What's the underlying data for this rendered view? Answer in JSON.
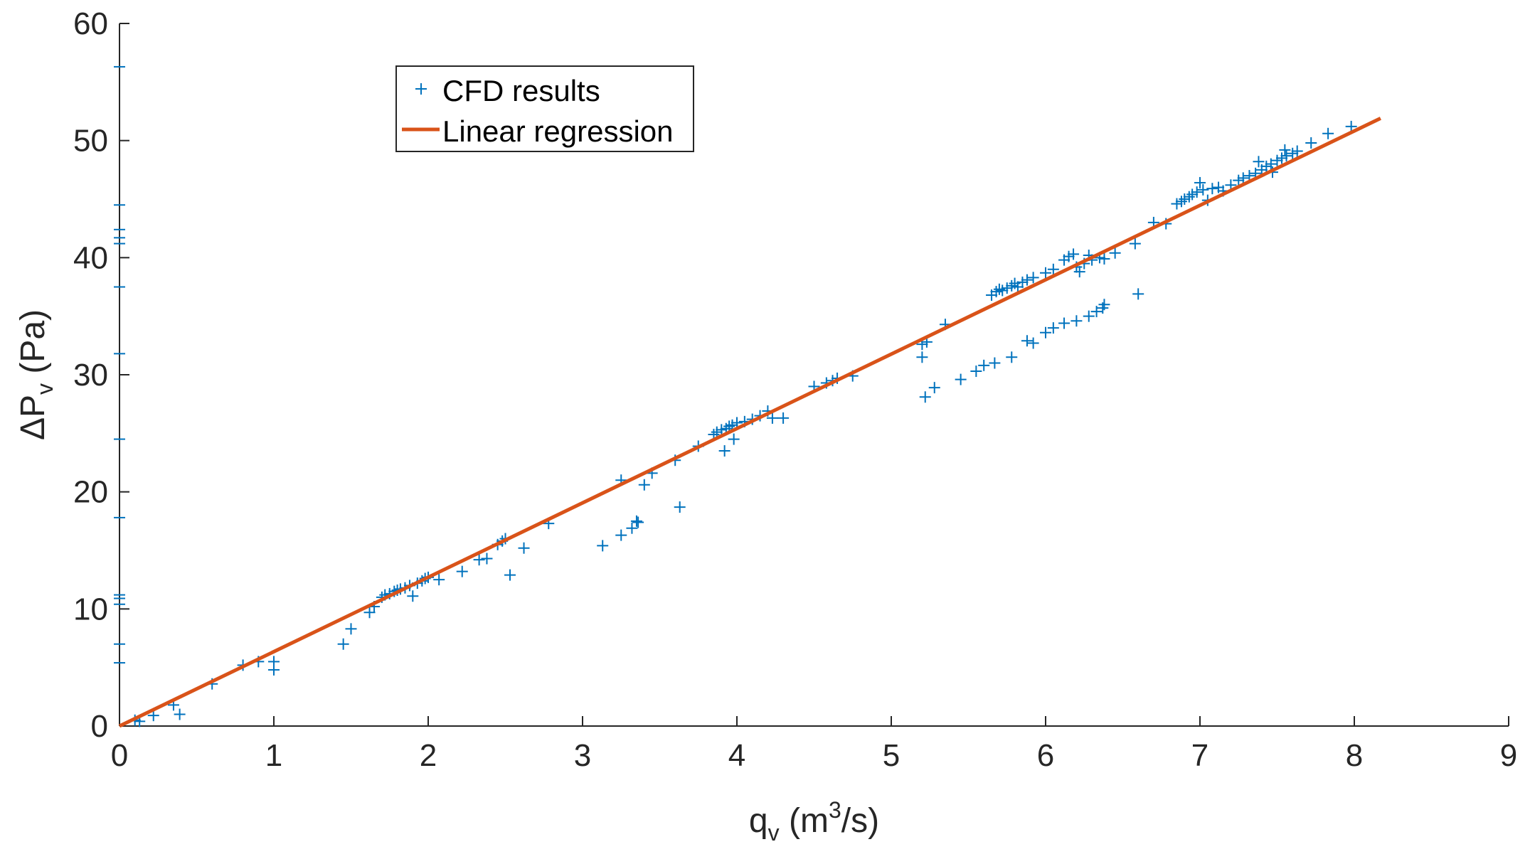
{
  "chart_data": {
    "type": "scatter",
    "title": "",
    "xlabel": {
      "base": "q",
      "sub": "v",
      "unit_open": " (m",
      "sup": "3",
      "unit_close": "/s)"
    },
    "ylabel": {
      "base": "ΔP",
      "sub": "v",
      "unit": " (Pa)"
    },
    "xlim": [
      0,
      9
    ],
    "ylim": [
      0,
      60
    ],
    "xticks": [
      "0",
      "1",
      "2",
      "3",
      "4",
      "5",
      "6",
      "7",
      "8",
      "9"
    ],
    "yticks": [
      "0",
      "10",
      "20",
      "30",
      "40",
      "50",
      "60"
    ],
    "legend_position": "top-left (inside axes)",
    "grid": false,
    "colors": {
      "scatter": "#0072BD",
      "regression": "#D95319",
      "axis": "#262626"
    },
    "regression": {
      "name": "Linear regression",
      "x": [
        0,
        8.17
      ],
      "y": [
        0,
        51.9
      ]
    },
    "series": [
      {
        "name": "CFD results",
        "marker": "+",
        "points": [
          [
            0.1,
            0.5
          ],
          [
            0.13,
            0.4
          ],
          [
            0.22,
            0.9
          ],
          [
            0.35,
            1.8
          ],
          [
            0.39,
            1.0
          ],
          [
            0.6,
            3.6
          ],
          [
            0.8,
            5.2
          ],
          [
            0.9,
            5.5
          ],
          [
            1.0,
            5.5
          ],
          [
            1.0,
            4.8
          ],
          [
            1.45,
            7.0
          ],
          [
            1.5,
            8.3
          ],
          [
            1.62,
            9.7
          ],
          [
            1.65,
            10.2
          ],
          [
            1.7,
            11.0
          ],
          [
            1.72,
            11.2
          ],
          [
            1.75,
            11.3
          ],
          [
            1.78,
            11.5
          ],
          [
            1.8,
            11.6
          ],
          [
            1.82,
            11.7
          ],
          [
            1.85,
            11.8
          ],
          [
            1.88,
            12.0
          ],
          [
            1.9,
            11.1
          ],
          [
            1.93,
            12.2
          ],
          [
            1.96,
            12.4
          ],
          [
            1.98,
            12.6
          ],
          [
            2.0,
            12.7
          ],
          [
            2.07,
            12.5
          ],
          [
            2.22,
            13.2
          ],
          [
            2.33,
            14.2
          ],
          [
            2.38,
            14.3
          ],
          [
            2.45,
            15.5
          ],
          [
            2.48,
            15.8
          ],
          [
            2.5,
            16.0
          ],
          [
            2.53,
            12.9
          ],
          [
            2.62,
            15.2
          ],
          [
            2.78,
            17.3
          ],
          [
            3.13,
            15.4
          ],
          [
            3.25,
            16.3
          ],
          [
            3.25,
            21.0
          ],
          [
            3.32,
            16.9
          ],
          [
            3.35,
            17.5
          ],
          [
            3.36,
            17.4
          ],
          [
            3.4,
            20.6
          ],
          [
            3.45,
            21.6
          ],
          [
            3.6,
            22.7
          ],
          [
            3.63,
            18.7
          ],
          [
            3.75,
            23.9
          ],
          [
            3.85,
            24.9
          ],
          [
            3.87,
            25.1
          ],
          [
            3.9,
            25.3
          ],
          [
            3.92,
            23.5
          ],
          [
            3.93,
            25.4
          ],
          [
            3.95,
            25.6
          ],
          [
            3.97,
            25.7
          ],
          [
            3.98,
            24.5
          ],
          [
            4.0,
            25.9
          ],
          [
            4.05,
            26.0
          ],
          [
            4.1,
            26.2
          ],
          [
            4.15,
            26.5
          ],
          [
            4.2,
            26.9
          ],
          [
            4.23,
            26.3
          ],
          [
            4.3,
            26.3
          ],
          [
            4.5,
            29.0
          ],
          [
            4.58,
            29.3
          ],
          [
            4.62,
            29.5
          ],
          [
            4.65,
            29.7
          ],
          [
            4.75,
            29.9
          ],
          [
            5.2,
            31.5
          ],
          [
            5.2,
            32.6
          ],
          [
            5.23,
            32.8
          ],
          [
            5.22,
            28.1
          ],
          [
            5.28,
            28.9
          ],
          [
            5.35,
            34.3
          ],
          [
            5.45,
            29.6
          ],
          [
            5.55,
            30.3
          ],
          [
            5.6,
            30.8
          ],
          [
            5.67,
            31.0
          ],
          [
            5.78,
            31.5
          ],
          [
            5.88,
            32.9
          ],
          [
            5.92,
            32.7
          ],
          [
            6.0,
            33.6
          ],
          [
            6.05,
            34.0
          ],
          [
            6.12,
            34.4
          ],
          [
            6.2,
            34.6
          ],
          [
            6.28,
            35.0
          ],
          [
            6.33,
            35.4
          ],
          [
            6.37,
            35.7
          ],
          [
            6.38,
            36.0
          ],
          [
            6.6,
            36.9
          ],
          [
            5.65,
            36.8
          ],
          [
            5.68,
            37.1
          ],
          [
            5.7,
            37.3
          ],
          [
            5.72,
            37.2
          ],
          [
            5.75,
            37.4
          ],
          [
            5.78,
            37.6
          ],
          [
            5.8,
            37.8
          ],
          [
            5.82,
            37.5
          ],
          [
            5.85,
            37.9
          ],
          [
            5.88,
            38.1
          ],
          [
            5.92,
            38.3
          ],
          [
            6.0,
            38.7
          ],
          [
            6.05,
            39.0
          ],
          [
            6.12,
            39.8
          ],
          [
            6.15,
            40.1
          ],
          [
            6.18,
            40.3
          ],
          [
            6.2,
            39.2
          ],
          [
            6.22,
            38.8
          ],
          [
            6.25,
            39.5
          ],
          [
            6.28,
            40.2
          ],
          [
            6.3,
            39.8
          ],
          [
            6.35,
            40.0
          ],
          [
            6.38,
            39.9
          ],
          [
            6.45,
            40.4
          ],
          [
            6.58,
            41.2
          ],
          [
            6.7,
            43.0
          ],
          [
            6.78,
            42.9
          ],
          [
            6.85,
            44.6
          ],
          [
            6.88,
            44.8
          ],
          [
            6.9,
            45.0
          ],
          [
            6.93,
            45.2
          ],
          [
            6.95,
            45.4
          ],
          [
            6.98,
            45.6
          ],
          [
            7.0,
            46.4
          ],
          [
            7.02,
            45.8
          ],
          [
            7.05,
            44.9
          ],
          [
            7.08,
            45.9
          ],
          [
            7.12,
            46.0
          ],
          [
            7.15,
            45.7
          ],
          [
            7.2,
            46.2
          ],
          [
            7.25,
            46.6
          ],
          [
            7.28,
            46.8
          ],
          [
            7.32,
            47.0
          ],
          [
            7.36,
            47.2
          ],
          [
            7.4,
            47.5
          ],
          [
            7.43,
            47.8
          ],
          [
            7.46,
            48.0
          ],
          [
            7.5,
            48.3
          ],
          [
            7.53,
            48.5
          ],
          [
            7.56,
            48.7
          ],
          [
            7.6,
            48.9
          ],
          [
            7.63,
            49.1
          ],
          [
            7.72,
            49.8
          ],
          [
            7.83,
            50.6
          ],
          [
            7.98,
            51.2
          ],
          [
            7.47,
            47.3
          ],
          [
            7.38,
            48.2
          ],
          [
            7.55,
            49.2
          ]
        ]
      }
    ],
    "left_edge_ticks_y": [
      56.3,
      44.5,
      42.4,
      41.7,
      41.2,
      37.5,
      31.8,
      24.5,
      17.8,
      11.2,
      10.9,
      10.4,
      7.0,
      5.4
    ]
  }
}
